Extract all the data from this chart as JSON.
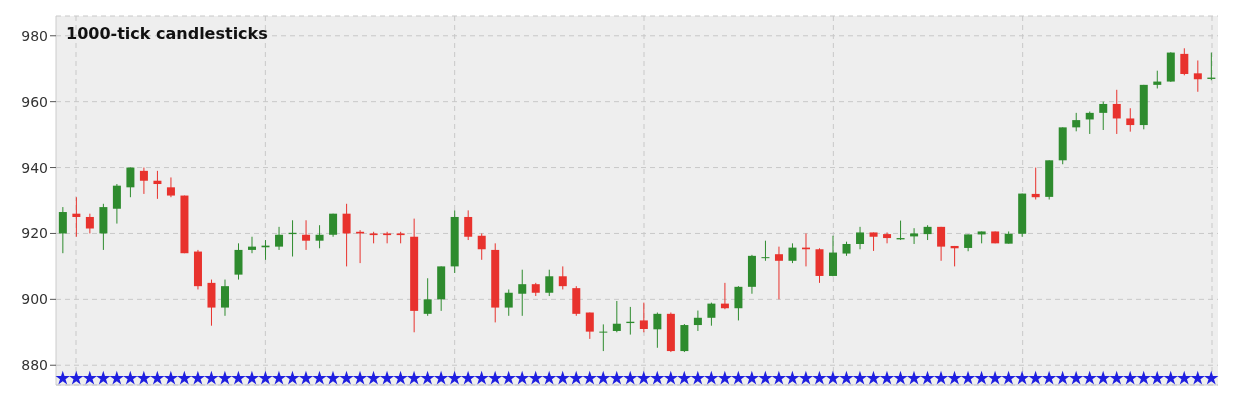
{
  "chart_data": {
    "type": "candlestick",
    "title": "1000-tick candlesticks",
    "categories": [
      null,
      null,
      null,
      null,
      null,
      null,
      null,
      null,
      null,
      null,
      null,
      null,
      null,
      null,
      null,
      null,
      null,
      null,
      null,
      null,
      null,
      null,
      null,
      null,
      null,
      null,
      null,
      null,
      null,
      null,
      null,
      null,
      null,
      null,
      null,
      null,
      null,
      null,
      null,
      null,
      null,
      null,
      null,
      null,
      null,
      null,
      null,
      null,
      null,
      null,
      null,
      null,
      null,
      null,
      null,
      null,
      null,
      null,
      null,
      null,
      null,
      null,
      null,
      null,
      null,
      null,
      null,
      null,
      null,
      null,
      null,
      null,
      null,
      null,
      null,
      null,
      null,
      null,
      null,
      null,
      null,
      null,
      null,
      null,
      null,
      null
    ],
    "ylim": [
      874,
      986
    ],
    "yticks": [
      880,
      900,
      920,
      940,
      960,
      980
    ],
    "grid": true,
    "tick_labels": "y",
    "series": [
      {
        "type": "candlestick",
        "colors": [
          "#2e8b2e",
          "#e8322d",
          "#e8322d",
          "#2e8b2e",
          "#2e8b2e",
          "#2e8b2e",
          "#e8322d",
          "#e8322d",
          "#e8322d",
          "#e8322d",
          "#e8322d",
          "#e8322d",
          "#2e8b2e",
          "#2e8b2e",
          "#2e8b2e",
          "#2e8b2e",
          "#2e8b2e",
          "#2e8b2e",
          "#e8322d",
          "#2e8b2e",
          "#2e8b2e",
          "#e8322d",
          "#e8322d",
          "#e8322d",
          "#e8322d",
          "#e8322d",
          "#e8322d",
          "#2e8b2e",
          "#2e8b2e",
          "#2e8b2e",
          "#e8322d",
          "#e8322d",
          "#e8322d",
          "#2e8b2e",
          "#2e8b2e",
          "#e8322d",
          "#2e8b2e",
          "#e8322d",
          "#e8322d",
          "#e8322d",
          "#2e8b2e",
          "#2e8b2e",
          "#2e8b2e",
          "#e8322d",
          "#2e8b2e",
          "#e8322d",
          "#2e8b2e",
          "#2e8b2e",
          "#2e8b2e",
          "#e8322d",
          "#2e8b2e",
          "#2e8b2e",
          "#2e8b2e",
          "#e8322d",
          "#2e8b2e",
          "#e8322d",
          "#e8322d",
          "#2e8b2e",
          "#2e8b2e",
          "#2e8b2e",
          "#e8322d",
          "#e8322d",
          "#2e8b2e",
          "#2e8b2e",
          "#2e8b2e",
          "#e8322d",
          "#e8322d",
          "#2e8b2e",
          "#2e8b2e",
          "#e8322d",
          "#2e8b2e",
          "#2e8b2e",
          "#e8322d",
          "#2e8b2e",
          "#2e8b2e",
          "#2e8b2e",
          "#2e8b2e",
          "#2e8b2e",
          "#e8322d",
          "#e8322d",
          "#2e8b2e",
          "#2e8b2e",
          "#2e8b2e",
          "#e8322d",
          "#e8322d",
          "#2e8b2e"
        ],
        "ohlc": [
          [
            920,
            928,
            914,
            926.5
          ],
          [
            926,
            931,
            919,
            925
          ],
          [
            925,
            926,
            920,
            921.5
          ],
          [
            920,
            929,
            915,
            928
          ],
          [
            927.5,
            935,
            923,
            934.5
          ],
          [
            934,
            940,
            931,
            940
          ],
          [
            939,
            940,
            932,
            936
          ],
          [
            936,
            939,
            930.5,
            935
          ],
          [
            934,
            937,
            931,
            931.5
          ],
          [
            931.5,
            931.5,
            914,
            914
          ],
          [
            914.5,
            915,
            903,
            904
          ],
          [
            905,
            906,
            892,
            897.5
          ],
          [
            897.5,
            906,
            895,
            904
          ],
          [
            907.5,
            917,
            906,
            915
          ],
          [
            915,
            919,
            914,
            916
          ],
          [
            915.8,
            918,
            912,
            916.3
          ],
          [
            916,
            922,
            915,
            919.6
          ],
          [
            919.8,
            924,
            913,
            920.2
          ],
          [
            919.6,
            924,
            915,
            917.8
          ],
          [
            917.8,
            922.5,
            915.5,
            919.6
          ],
          [
            919.6,
            926,
            919,
            926
          ],
          [
            926,
            929,
            910,
            920
          ],
          [
            920.5,
            921,
            911,
            920
          ],
          [
            920,
            920.5,
            917,
            919.5
          ],
          [
            920,
            920.5,
            917,
            919.5
          ],
          [
            920,
            920.5,
            917,
            919.5
          ],
          [
            919,
            924.5,
            890,
            896.5
          ],
          [
            895.6,
            906.4,
            895,
            900
          ],
          [
            900,
            910,
            896.5,
            910
          ],
          [
            910,
            927,
            908,
            925
          ],
          [
            925,
            927,
            918,
            919
          ],
          [
            919.3,
            920,
            912,
            915.2
          ],
          [
            915,
            917,
            893,
            897.5
          ],
          [
            897.5,
            903,
            895,
            902
          ],
          [
            901.7,
            909,
            895,
            904.6
          ],
          [
            904.6,
            905,
            901,
            902
          ],
          [
            902,
            909,
            901,
            907
          ],
          [
            907,
            910,
            903,
            904
          ],
          [
            903.4,
            904,
            895,
            895.6
          ],
          [
            896,
            896,
            888,
            890.2
          ],
          [
            890,
            892.4,
            884.3,
            890.2
          ],
          [
            890.4,
            899.5,
            890,
            892.6
          ],
          [
            892.8,
            897.7,
            889.3,
            893.2
          ],
          [
            893.6,
            899,
            890,
            891
          ],
          [
            890.9,
            896,
            885.3,
            895.6
          ],
          [
            895.6,
            896,
            884,
            884.3
          ],
          [
            884.3,
            892.5,
            884,
            892.2
          ],
          [
            892.2,
            896.6,
            890.4,
            894.4
          ],
          [
            894.4,
            899,
            892,
            898.7
          ],
          [
            898.7,
            905,
            897,
            897.3
          ],
          [
            897.3,
            904,
            893.6,
            903.8
          ],
          [
            903.8,
            913.5,
            901.7,
            913.2
          ],
          [
            912.5,
            917.8,
            911.7,
            912.8
          ],
          [
            913.7,
            916,
            900,
            911.7
          ],
          [
            911.7,
            917,
            911,
            915.7
          ],
          [
            915.7,
            920,
            910,
            915.2
          ],
          [
            915.2,
            915.5,
            905,
            907.1
          ],
          [
            907.1,
            919.3,
            907,
            914.2
          ],
          [
            913.9,
            917.5,
            913.2,
            916.8
          ],
          [
            916.8,
            922,
            915.2,
            920.3
          ],
          [
            920.3,
            920.3,
            914.7,
            919
          ],
          [
            919.8,
            920.3,
            917,
            918.6
          ],
          [
            918.2,
            923.9,
            918,
            918.6
          ],
          [
            919.1,
            921.6,
            916.8,
            920
          ],
          [
            919.8,
            922.5,
            918,
            922
          ],
          [
            922,
            922,
            911.7,
            916
          ],
          [
            916.2,
            916.2,
            910,
            915.5
          ],
          [
            915.6,
            919.7,
            914.6,
            919.7
          ],
          [
            919.7,
            920.6,
            917,
            920.6
          ],
          [
            920.6,
            920.6,
            917,
            917
          ],
          [
            916.9,
            920.6,
            916.9,
            919.9
          ],
          [
            919.9,
            932.1,
            919,
            932.1
          ],
          [
            932,
            940,
            930.3,
            931
          ],
          [
            931.1,
            942.2,
            930.3,
            942.2
          ],
          [
            942.2,
            952.2,
            941,
            952.2
          ],
          [
            952.2,
            956.6,
            951,
            954.4
          ],
          [
            954.6,
            957,
            950.2,
            956.6
          ],
          [
            956.6,
            960,
            951.4,
            959.3
          ],
          [
            959.3,
            963.6,
            950.2,
            954.9
          ],
          [
            954.9,
            958,
            950.9,
            952.9
          ],
          [
            952.9,
            965.1,
            951.6,
            965.1
          ],
          [
            965.1,
            969.4,
            964,
            966.1
          ],
          [
            966.1,
            975,
            966,
            974.9
          ],
          [
            974.5,
            976.2,
            968,
            968.4
          ],
          [
            968.6,
            972.5,
            963,
            966.8
          ],
          [
            966.9,
            974.9,
            966.5,
            967.3
          ]
        ]
      },
      {
        "type": "scatter",
        "marker": "star",
        "color": "#1f1fe0",
        "values": [
          876,
          876,
          876,
          876,
          876,
          876,
          876,
          876,
          876,
          876,
          876,
          876,
          876,
          876,
          876,
          876,
          876,
          876,
          876,
          876,
          876,
          876,
          876,
          876,
          876,
          876,
          876,
          876,
          876,
          876,
          876,
          876,
          876,
          876,
          876,
          876,
          876,
          876,
          876,
          876,
          876,
          876,
          876,
          876,
          876,
          876,
          876,
          876,
          876,
          876,
          876,
          876,
          876,
          876,
          876,
          876,
          876,
          876,
          876,
          876,
          876,
          876,
          876,
          876,
          876,
          876,
          876,
          876,
          876,
          876,
          876,
          876,
          876,
          876,
          876,
          876,
          876,
          876,
          876,
          876,
          876,
          876,
          876,
          876,
          876,
          876
        ]
      }
    ]
  }
}
